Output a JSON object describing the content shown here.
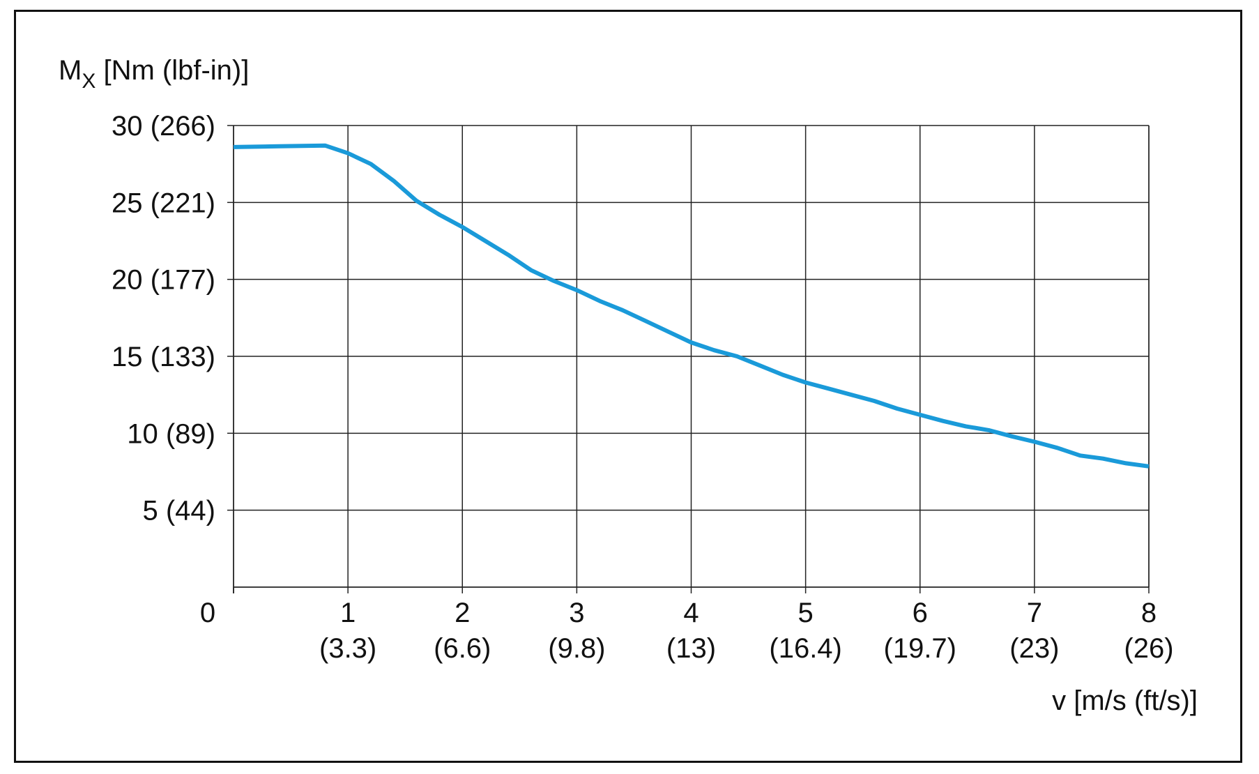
{
  "chart_data": {
    "type": "line",
    "ylabel": {
      "main": "M",
      "subscript": "X",
      "unit": " [Nm (lbf-in)]"
    },
    "xlabel": "v [m/s (ft/s)]",
    "xlim": [
      0,
      8
    ],
    "ylim": [
      0,
      30
    ],
    "grid": true,
    "x_ticks": [
      {
        "value": 0,
        "label": "0",
        "sublabel": ""
      },
      {
        "value": 1,
        "label": "1",
        "sublabel": "(3.3)"
      },
      {
        "value": 2,
        "label": "2",
        "sublabel": "(6.6)"
      },
      {
        "value": 3,
        "label": "3",
        "sublabel": "(9.8)"
      },
      {
        "value": 4,
        "label": "4",
        "sublabel": "(13)"
      },
      {
        "value": 5,
        "label": "5",
        "sublabel": "(16.4)"
      },
      {
        "value": 6,
        "label": "6",
        "sublabel": "(19.7)"
      },
      {
        "value": 7,
        "label": "7",
        "sublabel": "(23)"
      },
      {
        "value": 8,
        "label": "8",
        "sublabel": "(26)"
      }
    ],
    "y_ticks": [
      {
        "value": 5,
        "label": "5 (44)"
      },
      {
        "value": 10,
        "label": "10 (89)"
      },
      {
        "value": 15,
        "label": "15 (133)"
      },
      {
        "value": 20,
        "label": "20 (177)"
      },
      {
        "value": 25,
        "label": "25 (221)"
      },
      {
        "value": 30,
        "label": "30 (266)"
      }
    ],
    "series": [
      {
        "color": "#1a9ad9",
        "x": [
          0,
          0.4,
          0.8,
          1.0,
          1.2,
          1.4,
          1.6,
          1.8,
          2.0,
          2.2,
          2.4,
          2.6,
          2.8,
          3.0,
          3.2,
          3.4,
          3.6,
          3.8,
          4.0,
          4.2,
          4.4,
          4.6,
          4.8,
          5.0,
          5.2,
          5.4,
          5.6,
          5.8,
          6.0,
          6.2,
          6.4,
          6.6,
          6.8,
          7.0,
          7.2,
          7.4,
          7.6,
          7.8,
          8.0
        ],
        "y": [
          28.6,
          28.65,
          28.7,
          28.2,
          27.5,
          26.4,
          25.1,
          24.2,
          23.4,
          22.5,
          21.6,
          20.6,
          19.9,
          19.3,
          18.6,
          18.0,
          17.3,
          16.6,
          15.9,
          15.4,
          15.0,
          14.4,
          13.8,
          13.3,
          12.9,
          12.5,
          12.1,
          11.6,
          11.2,
          10.8,
          10.45,
          10.2,
          9.8,
          9.45,
          9.05,
          8.55,
          8.35,
          8.05,
          7.85
        ]
      }
    ]
  }
}
